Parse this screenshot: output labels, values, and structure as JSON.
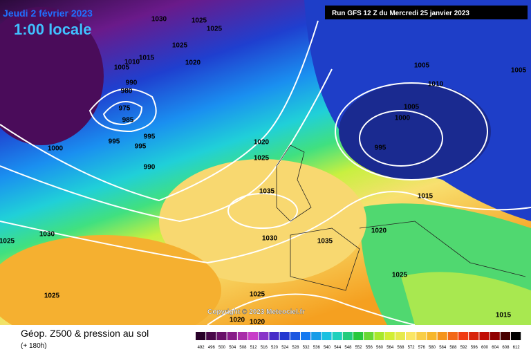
{
  "header": {
    "date": "Jeudi 2 février 2023",
    "time": "1:00 locale",
    "run": "Run GFS 12 Z du Mercredi 25 janvier 2023"
  },
  "copyright": "Copyright © 2023 Meteociel.fr",
  "footer": {
    "title": "Géop. Z500 & pression au sol",
    "subtitle": "(+ 180h)"
  },
  "legend": {
    "levels": [
      492,
      496,
      500,
      504,
      508,
      512,
      516,
      520,
      524,
      528,
      532,
      536,
      540,
      544,
      548,
      552,
      556,
      560,
      564,
      568,
      572,
      576,
      580,
      584,
      588,
      592,
      596,
      600,
      604,
      608,
      612
    ]
  },
  "isobars": [
    1030,
    1025,
    1025,
    1025,
    1015,
    1020,
    1010,
    1005,
    990,
    980,
    975,
    985,
    995,
    995,
    995,
    990,
    1000,
    1020,
    1025,
    1035,
    1030,
    1025,
    1030,
    1035,
    1020,
    1025,
    1025,
    1025,
    1020,
    1020,
    1005,
    1010,
    1005,
    1000,
    995,
    1015,
    1005,
    1015
  ]
}
